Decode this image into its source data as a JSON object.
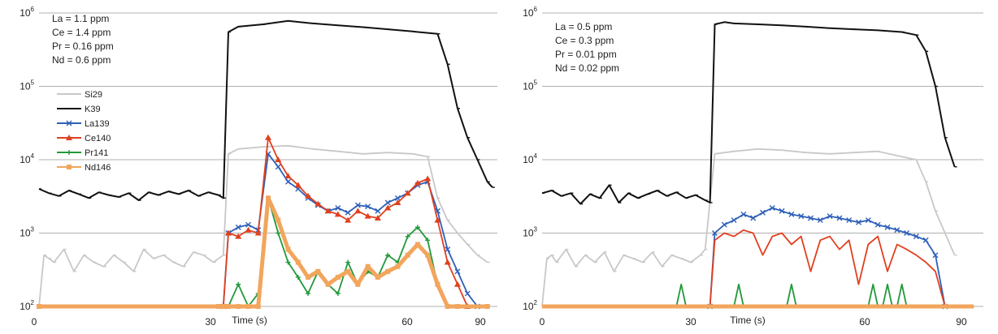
{
  "chart_data": [
    {
      "type": "line",
      "yscale": "log",
      "ylim": [
        100,
        1000000
      ],
      "xlim": [
        0,
        92
      ],
      "xlabel": "Time (s)",
      "x_ticks": [
        "0",
        "30",
        "60",
        "90"
      ],
      "y_ticks": [
        {
          "base": "10",
          "exp": "2",
          "value": 100
        },
        {
          "base": "10",
          "exp": "3",
          "value": 1000
        },
        {
          "base": "10",
          "exp": "4",
          "value": 10000
        },
        {
          "base": "10",
          "exp": "5",
          "value": 100000
        },
        {
          "base": "10",
          "exp": "6",
          "value": 1000000
        }
      ],
      "grid": "horizontal",
      "annotations": [
        "La = 1.1 ppm",
        "Ce = 1.4 ppm",
        "Pr = 0.16 ppm",
        "Nd = 0.6 ppm"
      ],
      "legend": [
        "Si29",
        "K39",
        "La139",
        "Ce140",
        "Pr141",
        "Nd146"
      ],
      "legend_position": "left",
      "series": [
        {
          "name": "Si29",
          "color": "#c8c8c8",
          "marker": "dash",
          "x": [
            0,
            1,
            2,
            3,
            5,
            7,
            9,
            11,
            13,
            15,
            17,
            19,
            21,
            23,
            25,
            27,
            29,
            31,
            33,
            35,
            37,
            38,
            40,
            45,
            50,
            55,
            60,
            65,
            70,
            75,
            78,
            80,
            82,
            84,
            86,
            88,
            90
          ],
          "y": [
            100,
            500,
            450,
            400,
            600,
            300,
            500,
            400,
            350,
            500,
            400,
            300,
            600,
            450,
            500,
            400,
            350,
            550,
            500,
            400,
            500,
            12000,
            14000,
            15000,
            15500,
            14000,
            13000,
            12000,
            12500,
            12000,
            11000,
            3000,
            1500,
            1000,
            700,
            500,
            400
          ]
        },
        {
          "name": "K39",
          "color": "#111111",
          "marker": "dash",
          "x": [
            0,
            2,
            4,
            6,
            8,
            10,
            12,
            14,
            16,
            18,
            20,
            22,
            24,
            26,
            28,
            30,
            32,
            34,
            36,
            37,
            38,
            40,
            45,
            50,
            55,
            60,
            65,
            70,
            75,
            80,
            82,
            84,
            86,
            88,
            90,
            91
          ],
          "y": [
            4000,
            3500,
            3200,
            3800,
            3400,
            3000,
            3600,
            3300,
            3100,
            3500,
            2800,
            3600,
            3300,
            3700,
            3400,
            3800,
            3200,
            3600,
            3300,
            3000,
            550000,
            650000,
            700000,
            780000,
            720000,
            680000,
            640000,
            600000,
            560000,
            520000,
            200000,
            50000,
            20000,
            10000,
            5000,
            4200
          ]
        },
        {
          "name": "La139",
          "color": "#2e5fb8",
          "marker": "x",
          "x": [
            37,
            38,
            40,
            42,
            44,
            46,
            48,
            50,
            52,
            54,
            56,
            58,
            60,
            62,
            64,
            66,
            68,
            70,
            72,
            74,
            76,
            78,
            80,
            82,
            84,
            86,
            88
          ],
          "y": [
            100,
            1000,
            1200,
            1300,
            1100,
            12000,
            8000,
            5000,
            4000,
            3000,
            2400,
            2000,
            2200,
            1900,
            2400,
            2300,
            2000,
            2600,
            3000,
            3500,
            4500,
            5000,
            2000,
            600,
            300,
            150,
            100
          ]
        },
        {
          "name": "Ce140",
          "color": "#e0401e",
          "marker": "triangle",
          "x": [
            37,
            38,
            40,
            42,
            44,
            46,
            48,
            50,
            52,
            54,
            56,
            58,
            60,
            62,
            64,
            66,
            68,
            70,
            72,
            74,
            76,
            78,
            80,
            82,
            84,
            86
          ],
          "y": [
            100,
            1000,
            900,
            1100,
            1000,
            20000,
            10000,
            6000,
            4500,
            3200,
            2500,
            2000,
            1800,
            1500,
            2000,
            1700,
            1600,
            2200,
            2600,
            3500,
            4800,
            5500,
            1500,
            400,
            200,
            100
          ]
        },
        {
          "name": "Pr141",
          "color": "#22993a",
          "marker": "plus",
          "x": [
            0,
            36,
            37,
            38,
            40,
            42,
            44,
            46,
            48,
            50,
            52,
            54,
            56,
            58,
            60,
            62,
            64,
            66,
            68,
            70,
            72,
            74,
            76,
            78,
            80,
            82,
            90
          ],
          "y": [
            100,
            100,
            100,
            100,
            200,
            100,
            150,
            3000,
            1000,
            400,
            250,
            150,
            300,
            200,
            150,
            400,
            200,
            300,
            250,
            500,
            400,
            900,
            1200,
            800,
            200,
            100,
            100
          ]
        },
        {
          "name": "Nd146",
          "color": "#f2a55c",
          "marker": "square",
          "x": [
            0,
            36,
            37,
            38,
            40,
            42,
            44,
            46,
            48,
            50,
            52,
            54,
            56,
            58,
            60,
            62,
            64,
            66,
            68,
            70,
            72,
            74,
            76,
            78,
            80,
            82,
            84,
            90
          ],
          "y": [
            100,
            100,
            100,
            100,
            100,
            100,
            100,
            3000,
            1500,
            600,
            400,
            250,
            300,
            200,
            250,
            300,
            200,
            350,
            250,
            300,
            350,
            500,
            700,
            500,
            200,
            100,
            100,
            100
          ]
        }
      ]
    },
    {
      "type": "line",
      "yscale": "log",
      "ylim": [
        100,
        1000000
      ],
      "xlim": [
        0,
        92
      ],
      "xlabel": "Time (s)",
      "x_ticks": [
        "0",
        "30",
        "60",
        "90"
      ],
      "y_ticks": [
        {
          "base": "10",
          "exp": "2",
          "value": 100
        },
        {
          "base": "10",
          "exp": "3",
          "value": 1000
        },
        {
          "base": "10",
          "exp": "4",
          "value": 10000
        },
        {
          "base": "10",
          "exp": "5",
          "value": 100000
        },
        {
          "base": "10",
          "exp": "6",
          "value": 1000000
        }
      ],
      "grid": "horizontal",
      "annotations": [
        "La = 0.5 ppm",
        "Ce = 0.3 ppm",
        "Pr = 0.01 ppm",
        "Nd = 0.02 ppm"
      ],
      "series": [
        {
          "name": "Si29",
          "color": "#c8c8c8",
          "marker": "dash",
          "x": [
            0,
            1,
            2,
            3,
            5,
            7,
            9,
            11,
            13,
            15,
            17,
            19,
            21,
            23,
            25,
            27,
            29,
            31,
            33,
            34,
            36,
            40,
            45,
            50,
            55,
            60,
            65,
            70,
            75,
            78,
            80,
            82,
            84,
            86
          ],
          "y": [
            100,
            450,
            500,
            400,
            600,
            350,
            500,
            400,
            550,
            300,
            500,
            450,
            400,
            550,
            350,
            500,
            450,
            400,
            500,
            600,
            12000,
            13000,
            14000,
            13500,
            12500,
            12000,
            12500,
            13000,
            11000,
            10000,
            5000,
            2000,
            1000,
            500
          ]
        },
        {
          "name": "K39",
          "color": "#111111",
          "marker": "dash",
          "x": [
            0,
            2,
            4,
            6,
            8,
            10,
            12,
            14,
            16,
            18,
            20,
            22,
            24,
            26,
            28,
            30,
            32,
            34,
            35,
            36,
            38,
            40,
            45,
            50,
            55,
            60,
            65,
            70,
            75,
            78,
            80,
            82,
            84,
            86
          ],
          "y": [
            3500,
            3800,
            3200,
            3500,
            2500,
            3400,
            3000,
            4500,
            2600,
            3500,
            3000,
            3400,
            3800,
            3200,
            3600,
            3000,
            3300,
            2800,
            2600,
            700000,
            750000,
            720000,
            700000,
            680000,
            650000,
            620000,
            600000,
            580000,
            550000,
            500000,
            300000,
            100000,
            20000,
            8000
          ]
        },
        {
          "name": "La139",
          "color": "#2e5fb8",
          "marker": "x",
          "x": [
            35,
            36,
            38,
            40,
            42,
            44,
            46,
            48,
            50,
            52,
            54,
            56,
            58,
            60,
            62,
            64,
            66,
            68,
            70,
            72,
            74,
            76,
            78,
            80,
            82,
            84
          ],
          "y": [
            100,
            1000,
            1300,
            1500,
            1800,
            1600,
            1900,
            2200,
            2000,
            1800,
            1700,
            1600,
            1500,
            1700,
            1600,
            1500,
            1400,
            1500,
            1300,
            1200,
            1100,
            1000,
            900,
            800,
            500,
            100
          ]
        },
        {
          "name": "Ce140",
          "color": "#e0401e",
          "marker": "none",
          "x": [
            35,
            36,
            38,
            40,
            42,
            44,
            46,
            48,
            50,
            52,
            54,
            56,
            58,
            60,
            62,
            64,
            66,
            68,
            70,
            72,
            74,
            76,
            78,
            80,
            82,
            84
          ],
          "y": [
            100,
            800,
            1000,
            900,
            1100,
            1000,
            500,
            900,
            1000,
            700,
            900,
            300,
            800,
            900,
            600,
            800,
            200,
            700,
            900,
            300,
            700,
            600,
            500,
            400,
            300,
            100
          ]
        },
        {
          "name": "Pr141",
          "color": "#22993a",
          "marker": "none",
          "x": [
            0,
            28,
            29,
            30,
            40,
            41,
            42,
            51,
            52,
            53,
            68,
            69,
            70,
            71,
            72,
            73,
            74,
            75,
            76,
            90
          ],
          "y": [
            100,
            100,
            200,
            100,
            100,
            200,
            100,
            100,
            200,
            100,
            100,
            200,
            100,
            100,
            200,
            100,
            100,
            200,
            100,
            100
          ]
        },
        {
          "name": "Nd146",
          "color": "#f2a55c",
          "marker": "none",
          "x": [
            0,
            90
          ],
          "y": [
            100,
            100
          ]
        }
      ]
    }
  ]
}
